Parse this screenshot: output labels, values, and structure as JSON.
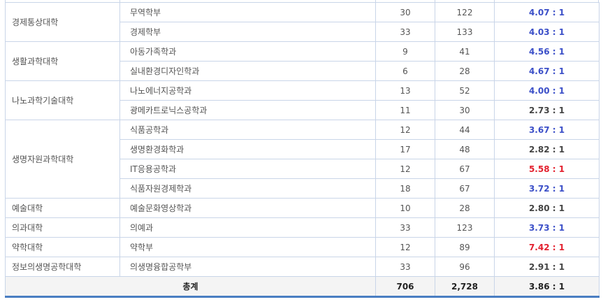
{
  "colors": {
    "high": "#3b4fc8",
    "very_high": "#e3202e",
    "normal": "#444444"
  },
  "rows": [
    {
      "college": "경제통상대학",
      "dept": "무역학부",
      "quota": "30",
      "applicants": "122",
      "ratio": "4.07 : 1",
      "level": "high"
    },
    {
      "college": "",
      "dept": "경제학부",
      "quota": "33",
      "applicants": "133",
      "ratio": "4.03 : 1",
      "level": "high"
    },
    {
      "college": "생활과학대학",
      "dept": "아동가족학과",
      "quota": "9",
      "applicants": "41",
      "ratio": "4.56 : 1",
      "level": "high"
    },
    {
      "college": "",
      "dept": "실내환경디자인학과",
      "quota": "6",
      "applicants": "28",
      "ratio": "4.67 : 1",
      "level": "high"
    },
    {
      "college": "나노과학기술대학",
      "dept": "나노에너지공학과",
      "quota": "13",
      "applicants": "52",
      "ratio": "4.00 : 1",
      "level": "high"
    },
    {
      "college": "",
      "dept": "광메카트로닉스공학과",
      "quota": "11",
      "applicants": "30",
      "ratio": "2.73 : 1",
      "level": "normal"
    },
    {
      "college": "생명자원과학대학",
      "dept": "식품공학과",
      "quota": "12",
      "applicants": "44",
      "ratio": "3.67 : 1",
      "level": "high"
    },
    {
      "college": "",
      "dept": "생명환경화학과",
      "quota": "17",
      "applicants": "48",
      "ratio": "2.82 : 1",
      "level": "normal"
    },
    {
      "college": "",
      "dept": "IT응용공학과",
      "quota": "12",
      "applicants": "67",
      "ratio": "5.58 : 1",
      "level": "very_high"
    },
    {
      "college": "",
      "dept": "식품자원경제학과",
      "quota": "18",
      "applicants": "67",
      "ratio": "3.72 : 1",
      "level": "high"
    },
    {
      "college": "예술대학",
      "dept": "예술문화영상학과",
      "quota": "10",
      "applicants": "28",
      "ratio": "2.80 : 1",
      "level": "normal"
    },
    {
      "college": "의과대학",
      "dept": "의예과",
      "quota": "33",
      "applicants": "123",
      "ratio": "3.73 : 1",
      "level": "high"
    },
    {
      "college": "약학대학",
      "dept": "약학부",
      "quota": "12",
      "applicants": "89",
      "ratio": "7.42 : 1",
      "level": "very_high"
    },
    {
      "college": "정보의생명공학대학",
      "dept": "의생명융합공학부",
      "quota": "33",
      "applicants": "96",
      "ratio": "2.91 : 1",
      "level": "normal"
    }
  ],
  "total": {
    "label": "총계",
    "quota": "706",
    "applicants": "2,728",
    "ratio": "3.86 : 1"
  }
}
